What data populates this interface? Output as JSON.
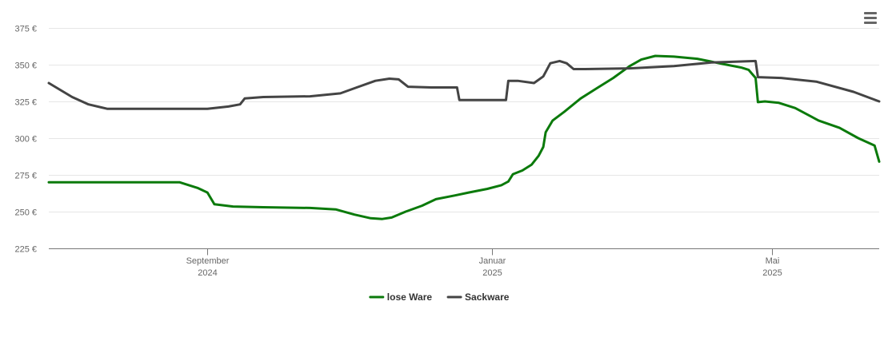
{
  "chart_data": {
    "type": "line",
    "title": "",
    "xlabel": "",
    "ylabel": "",
    "ylim": [
      225,
      375
    ],
    "yticks": [
      {
        "value": 375,
        "label": "375 €"
      },
      {
        "value": 350,
        "label": "350 €"
      },
      {
        "value": 325,
        "label": "325 €"
      },
      {
        "value": 300,
        "label": "300 €"
      },
      {
        "value": 275,
        "label": "275 €"
      },
      {
        "value": 250,
        "label": "250 €"
      },
      {
        "value": 225,
        "label": "225 €"
      }
    ],
    "xlim": [
      "2024-06-25",
      "2025-06-16"
    ],
    "xticks": [
      {
        "date": "2024-09-01",
        "line1": "September",
        "line2": "2024"
      },
      {
        "date": "2025-01-01",
        "line1": "Januar",
        "line2": "2025"
      },
      {
        "date": "2025-05-01",
        "line1": "Mai",
        "line2": "2025"
      }
    ],
    "grid": true,
    "legend": "bottom-center",
    "series": [
      {
        "name": "lose Ware",
        "color": "#0b7a0b",
        "points": [
          [
            "2024-06-25",
            270
          ],
          [
            "2024-07-15",
            270
          ],
          [
            "2024-08-05",
            270
          ],
          [
            "2024-08-20",
            270
          ],
          [
            "2024-08-28",
            266
          ],
          [
            "2024-09-01",
            263
          ],
          [
            "2024-09-04",
            255
          ],
          [
            "2024-09-12",
            253.5
          ],
          [
            "2024-09-25",
            253
          ],
          [
            "2024-10-15",
            252.5
          ],
          [
            "2024-10-26",
            251.5
          ],
          [
            "2024-11-03",
            248
          ],
          [
            "2024-11-10",
            245.5
          ],
          [
            "2024-11-15",
            245
          ],
          [
            "2024-11-19",
            246
          ],
          [
            "2024-11-25",
            250
          ],
          [
            "2024-12-02",
            254
          ],
          [
            "2024-12-08",
            258.5
          ],
          [
            "2024-12-16",
            261
          ],
          [
            "2024-12-22",
            263
          ],
          [
            "2024-12-30",
            265.5
          ],
          [
            "2025-01-05",
            268
          ],
          [
            "2025-01-08",
            270.5
          ],
          [
            "2025-01-10",
            275.5
          ],
          [
            "2025-01-14",
            278
          ],
          [
            "2025-01-18",
            282
          ],
          [
            "2025-01-21",
            288
          ],
          [
            "2025-01-23",
            294
          ],
          [
            "2025-01-24",
            304
          ],
          [
            "2025-01-27",
            312
          ],
          [
            "2025-02-01",
            318
          ],
          [
            "2025-02-08",
            327
          ],
          [
            "2025-02-15",
            334
          ],
          [
            "2025-02-22",
            341
          ],
          [
            "2025-03-01",
            349
          ],
          [
            "2025-03-06",
            353.5
          ],
          [
            "2025-03-12",
            356
          ],
          [
            "2025-03-20",
            355.5
          ],
          [
            "2025-03-30",
            354
          ],
          [
            "2025-04-10",
            350.5
          ],
          [
            "2025-04-18",
            348
          ],
          [
            "2025-04-21",
            346.5
          ],
          [
            "2025-04-24",
            341
          ],
          [
            "2025-04-25",
            324.5
          ],
          [
            "2025-04-28",
            325
          ],
          [
            "2025-05-04",
            324
          ],
          [
            "2025-05-11",
            320.5
          ],
          [
            "2025-05-21",
            312
          ],
          [
            "2025-05-30",
            307
          ],
          [
            "2025-06-07",
            300
          ],
          [
            "2025-06-14",
            295
          ],
          [
            "2025-06-16",
            284
          ]
        ]
      },
      {
        "name": "Sackware",
        "color": "#444444",
        "points": [
          [
            "2024-06-25",
            337.5
          ],
          [
            "2024-07-05",
            328
          ],
          [
            "2024-07-12",
            323
          ],
          [
            "2024-07-20",
            320
          ],
          [
            "2024-08-10",
            320
          ],
          [
            "2024-09-01",
            320
          ],
          [
            "2024-09-10",
            321.5
          ],
          [
            "2024-09-15",
            323
          ],
          [
            "2024-09-17",
            327
          ],
          [
            "2024-09-25",
            328
          ],
          [
            "2024-10-15",
            328.5
          ],
          [
            "2024-10-28",
            330.5
          ],
          [
            "2024-11-04",
            334.5
          ],
          [
            "2024-11-12",
            339
          ],
          [
            "2024-11-18",
            340.5
          ],
          [
            "2024-11-22",
            340
          ],
          [
            "2024-11-26",
            335
          ],
          [
            "2024-12-06",
            334.5
          ],
          [
            "2024-12-17",
            334.5
          ],
          [
            "2024-12-18",
            326
          ],
          [
            "2024-12-25",
            326
          ],
          [
            "2025-01-07",
            326
          ],
          [
            "2025-01-08",
            339
          ],
          [
            "2025-01-12",
            339
          ],
          [
            "2025-01-19",
            337.5
          ],
          [
            "2025-01-23",
            342
          ],
          [
            "2025-01-26",
            351
          ],
          [
            "2025-01-30",
            352.5
          ],
          [
            "2025-02-02",
            351
          ],
          [
            "2025-02-05",
            347
          ],
          [
            "2025-02-10",
            347
          ],
          [
            "2025-03-01",
            347.5
          ],
          [
            "2025-03-20",
            349
          ],
          [
            "2025-04-05",
            351.5
          ],
          [
            "2025-04-24",
            352.5
          ],
          [
            "2025-04-25",
            341.5
          ],
          [
            "2025-05-05",
            341
          ],
          [
            "2025-05-20",
            338.5
          ],
          [
            "2025-06-05",
            331.5
          ],
          [
            "2025-06-16",
            325
          ]
        ]
      }
    ]
  },
  "menu": {
    "icon": "hamburger-menu-icon"
  }
}
